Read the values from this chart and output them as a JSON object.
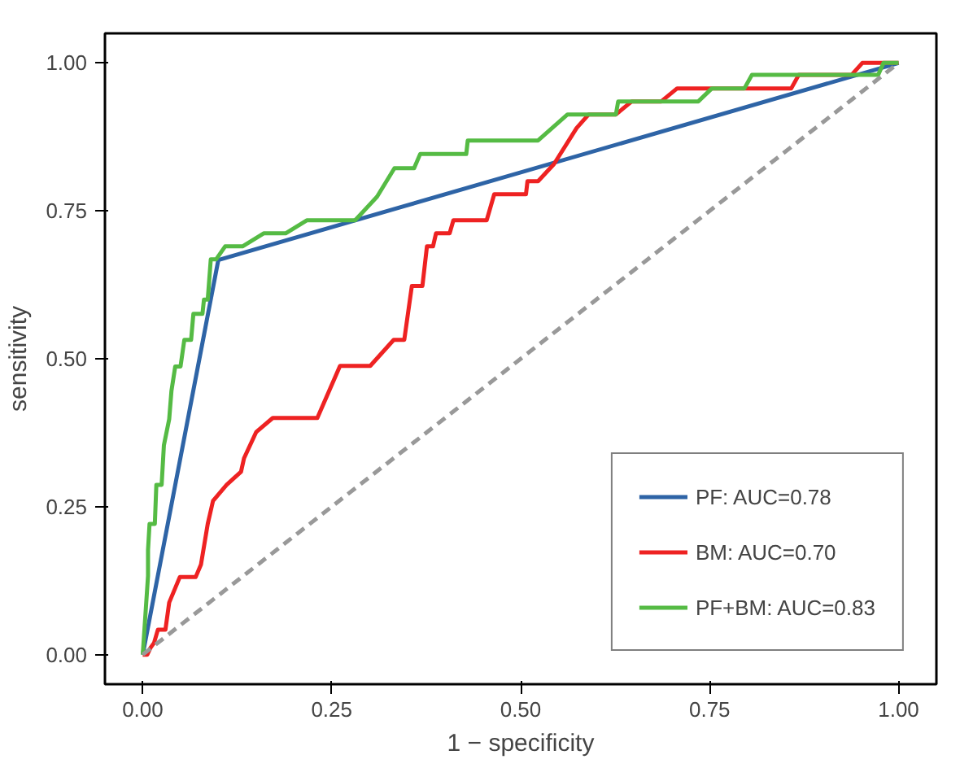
{
  "chart_data": {
    "type": "line",
    "xlabel": "1 − specificity",
    "ylabel": "sensitivity",
    "xlim": [
      -0.05,
      1.05
    ],
    "ylim": [
      -0.05,
      1.05
    ],
    "xticks": [
      {
        "value": 0,
        "label": "0.00"
      },
      {
        "value": 0.25,
        "label": "0.25"
      },
      {
        "value": 0.5,
        "label": "0.50"
      },
      {
        "value": 0.75,
        "label": "0.75"
      },
      {
        "value": 1,
        "label": "1.00"
      }
    ],
    "yticks": [
      {
        "value": 0,
        "label": "0.00"
      },
      {
        "value": 0.25,
        "label": "0.25"
      },
      {
        "value": 0.5,
        "label": "0.50"
      },
      {
        "value": 0.75,
        "label": "0.75"
      },
      {
        "value": 1,
        "label": "1.00"
      }
    ],
    "grid": false,
    "legend": "bottom right",
    "marker": "none",
    "line_style": "solid",
    "series": [
      {
        "name": "PF: AUC=0.78",
        "color": "#2e64a6",
        "x": [
          0,
          0.1,
          1
        ],
        "values": [
          0,
          0.667,
          1
        ]
      },
      {
        "name": "BM: AUC=0.70",
        "color": "#ee2222",
        "x": [
          0,
          0.006,
          0.01,
          0.015,
          0.02,
          0.03,
          0.035,
          0.049,
          0.07,
          0.077,
          0.086,
          0.093,
          0.111,
          0.13,
          0.134,
          0.15,
          0.172,
          0.231,
          0.261,
          0.301,
          0.332,
          0.346,
          0.356,
          0.37,
          0.376,
          0.384,
          0.388,
          0.406,
          0.411,
          0.455,
          0.465,
          0.507,
          0.509,
          0.523,
          0.544,
          0.574,
          0.59,
          0.626,
          0.647,
          0.686,
          0.707,
          0.858,
          0.868,
          0.938,
          0.952,
          1
        ],
        "values": [
          0,
          0,
          0.011,
          0.02,
          0.042,
          0.042,
          0.088,
          0.131,
          0.131,
          0.152,
          0.221,
          0.26,
          0.287,
          0.309,
          0.332,
          0.376,
          0.4,
          0.4,
          0.488,
          0.488,
          0.532,
          0.532,
          0.623,
          0.623,
          0.69,
          0.69,
          0.712,
          0.712,
          0.734,
          0.734,
          0.778,
          0.778,
          0.8,
          0.8,
          0.829,
          0.89,
          0.913,
          0.913,
          0.935,
          0.935,
          0.957,
          0.957,
          0.98,
          0.98,
          1,
          1
        ]
      },
      {
        "name": "PF+BM: AUC=0.83",
        "color": "#55bb44",
        "x": [
          0,
          0.007,
          0.007,
          0.009,
          0.016,
          0.018,
          0.025,
          0.028,
          0.035,
          0.038,
          0.043,
          0.05,
          0.055,
          0.064,
          0.067,
          0.079,
          0.081,
          0.086,
          0.09,
          0.097,
          0.109,
          0.132,
          0.16,
          0.189,
          0.217,
          0.281,
          0.31,
          0.333,
          0.359,
          0.367,
          0.428,
          0.43,
          0.523,
          0.562,
          0.626,
          0.629,
          0.735,
          0.753,
          0.796,
          0.806,
          0.973,
          0.98,
          1
        ],
        "values": [
          0,
          0.133,
          0.177,
          0.221,
          0.221,
          0.287,
          0.287,
          0.354,
          0.398,
          0.446,
          0.487,
          0.487,
          0.532,
          0.532,
          0.576,
          0.576,
          0.6,
          0.6,
          0.668,
          0.668,
          0.69,
          0.69,
          0.712,
          0.712,
          0.734,
          0.734,
          0.774,
          0.822,
          0.822,
          0.846,
          0.846,
          0.869,
          0.869,
          0.913,
          0.913,
          0.935,
          0.935,
          0.957,
          0.957,
          0.98,
          0.98,
          1,
          1
        ]
      },
      {
        "color": "#999999",
        "line_style": "dashed",
        "x": [
          0,
          1
        ],
        "values": [
          0,
          1
        ]
      }
    ]
  }
}
